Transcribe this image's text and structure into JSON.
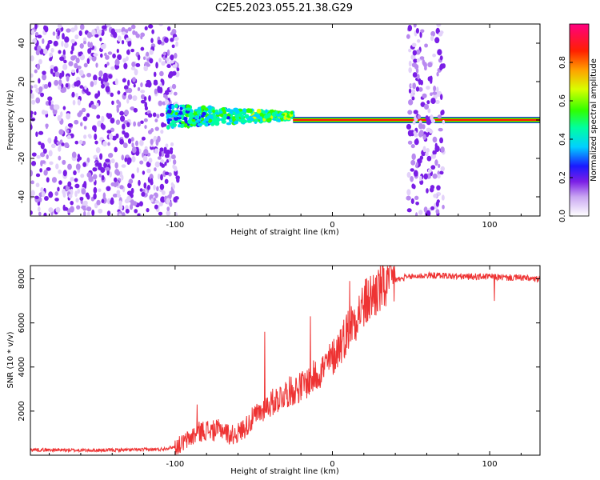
{
  "page_title": "C2E5.2023.055.21.38.G29",
  "chart_data": [
    {
      "type": "heatmap",
      "title": "C2E5.2023.055.21.38.G29",
      "xlabel": "Height of straight line (km)",
      "ylabel": "Frequency (Hz)",
      "xlim": [
        -192,
        132
      ],
      "ylim": [
        -50,
        50
      ],
      "x_ticks": [
        -100,
        0,
        100
      ],
      "y_ticks": [
        -40,
        -20,
        0,
        20,
        40
      ],
      "colorbar": {
        "label": "Normalized spectral amplitude",
        "range": [
          0,
          1
        ],
        "ticks": [
          0.0,
          0.2,
          0.4,
          0.6,
          0.8
        ]
      },
      "features": [
        {
          "name": "noise region",
          "x_range": [
            -192,
            -98
          ],
          "y_range": [
            -50,
            50
          ],
          "level": 0.1
        },
        {
          "name": "signal acquisition",
          "x_range": [
            -105,
            -25
          ],
          "center_hz": 2,
          "spread_hz": 6,
          "level": 0.35
        },
        {
          "name": "tone",
          "x_range": [
            -25,
            132
          ],
          "center_hz": 0,
          "level": 1.0
        },
        {
          "name": "noise band",
          "x_range": [
            48,
            71
          ],
          "y_range": [
            -50,
            50
          ],
          "level": 0.1
        }
      ]
    },
    {
      "type": "line",
      "xlabel": "Height of straight line (km)",
      "ylabel": "SNR (10 * v/v)",
      "xlim": [
        -192,
        132
      ],
      "ylim": [
        0,
        8600
      ],
      "x_ticks": [
        -100,
        0,
        100
      ],
      "y_ticks": [
        2000,
        4000,
        6000,
        8000
      ],
      "color": "#ee3333",
      "series": [
        {
          "name": "SNR",
          "x": [
            -192,
            -170,
            -150,
            -130,
            -110,
            -100,
            -95,
            -90,
            -85,
            -80,
            -75,
            -70,
            -65,
            -60,
            -55,
            -50,
            -45,
            -40,
            -35,
            -30,
            -25,
            -20,
            -15,
            -10,
            -5,
            0,
            5,
            10,
            15,
            20,
            25,
            30,
            35,
            40,
            45,
            50,
            60,
            70,
            80,
            90,
            100,
            110,
            120,
            132
          ],
          "y": [
            250,
            230,
            220,
            240,
            260,
            380,
            550,
            800,
            1050,
            1150,
            1100,
            1200,
            900,
            1000,
            1300,
            1700,
            2000,
            2300,
            2550,
            2800,
            2950,
            3100,
            3350,
            3650,
            4000,
            4400,
            5000,
            5700,
            6300,
            6800,
            7200,
            7550,
            7800,
            7950,
            8000,
            8100,
            8150,
            8150,
            8100,
            8100,
            8100,
            8050,
            8050,
            7950
          ]
        }
      ],
      "spikes": [
        [
          -86,
          2300
        ],
        [
          -43,
          5600
        ],
        [
          -14,
          6300
        ],
        [
          5,
          5700
        ],
        [
          11,
          7900
        ],
        [
          46,
          8200
        ],
        [
          103,
          7000
        ]
      ]
    }
  ]
}
